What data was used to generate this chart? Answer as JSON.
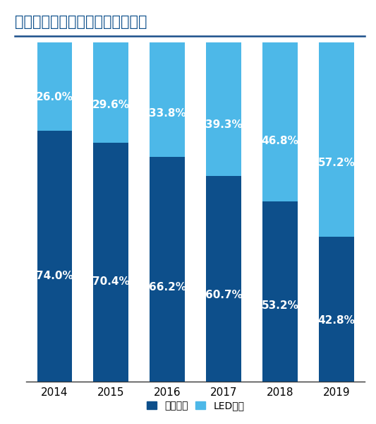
{
  "title": "中国通用照明市场收入按技术划分",
  "years": [
    "2014",
    "2015",
    "2016",
    "2017",
    "2018",
    "2019"
  ],
  "traditional_pct": [
    74.0,
    70.4,
    66.2,
    60.7,
    53.2,
    42.8
  ],
  "led_pct": [
    26.0,
    29.6,
    33.8,
    39.3,
    46.8,
    57.2
  ],
  "traditional_color": "#0d4f8b",
  "led_color": "#4db8e8",
  "title_color": "#0d4f8b",
  "title_line_color": "#1a4f8a",
  "text_color_white": "#ffffff",
  "legend_trad": "传统照明",
  "legend_led": "LED照明",
  "background_color": "#ffffff",
  "title_fontsize": 15,
  "label_fontsize": 11,
  "tick_fontsize": 11,
  "legend_fontsize": 10
}
